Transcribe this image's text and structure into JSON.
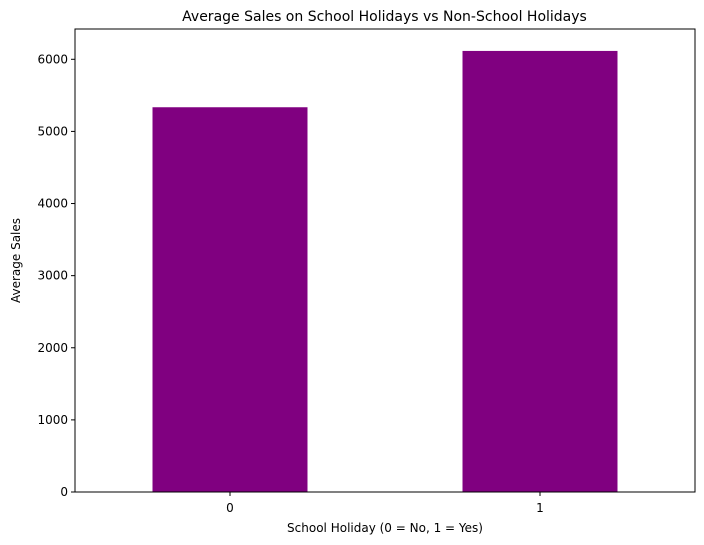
{
  "chart_data": {
    "type": "bar",
    "title": "Average Sales on School Holidays vs Non-School Holidays",
    "xlabel": "School Holiday (0 = No, 1 = Yes)",
    "ylabel": "Average Sales",
    "categories": [
      "0",
      "1"
    ],
    "values": [
      5335,
      6116
    ],
    "ylim": [
      0,
      6420
    ],
    "yticks": [
      0,
      1000,
      2000,
      3000,
      4000,
      5000,
      6000
    ],
    "bar_color": "#800080",
    "grid": false,
    "legend": "none"
  }
}
